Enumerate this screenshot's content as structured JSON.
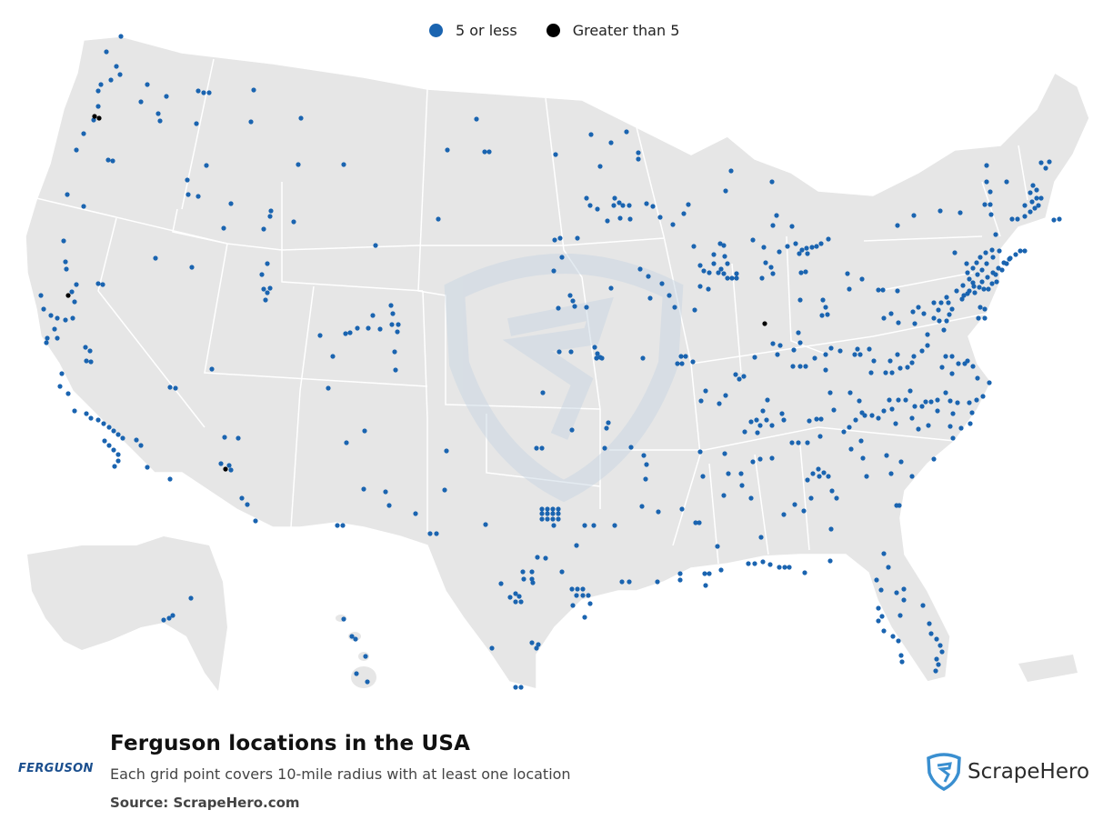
{
  "legend": {
    "items": [
      {
        "label": "5 or less",
        "color": "#1a64b0"
      },
      {
        "label": "Greater than 5",
        "color": "#000000"
      }
    ]
  },
  "title": "Ferguson locations in the USA",
  "subtitle": "Each grid point covers 10-mile radius with at least one location",
  "source": {
    "label": "Source:",
    "value": "ScrapeHero.com"
  },
  "brand_logo": "FERGUSON",
  "scrapehero_logo": "ScrapeHero",
  "colors": {
    "land": "#e6e6e6",
    "borders": "#ffffff",
    "watermark": "#d2dde8"
  },
  "map": {
    "region": "Contiguous United States with Alaska and Hawaii insets",
    "grid_point_radius_miles": 10
  }
}
